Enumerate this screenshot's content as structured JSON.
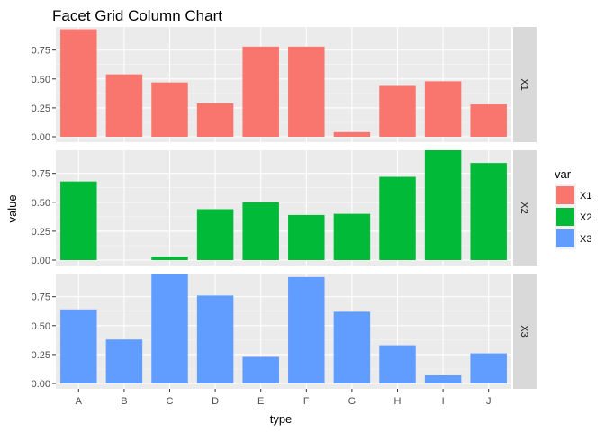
{
  "chart_data": {
    "type": "bar",
    "title": "Facet Grid Column Chart",
    "xlabel": "type",
    "ylabel": "value",
    "categories": [
      "A",
      "B",
      "C",
      "D",
      "E",
      "F",
      "G",
      "H",
      "I",
      "J"
    ],
    "ylim": [
      0,
      0.95
    ],
    "yticks": [
      0.0,
      0.25,
      0.5,
      0.75
    ],
    "ytick_labels": [
      "0.00",
      "0.25",
      "0.50",
      "0.75"
    ],
    "grid": true,
    "legend": {
      "title": "var",
      "placement": "right"
    },
    "facets": [
      {
        "label": "X1",
        "color": "#F8766D",
        "values": [
          0.93,
          0.54,
          0.47,
          0.29,
          0.78,
          0.78,
          0.04,
          0.44,
          0.48,
          0.28
        ]
      },
      {
        "label": "X2",
        "color": "#00BA38",
        "values": [
          0.68,
          0.0,
          0.03,
          0.44,
          0.5,
          0.39,
          0.4,
          0.72,
          0.95,
          0.84
        ]
      },
      {
        "label": "X3",
        "color": "#619CFF",
        "values": [
          0.64,
          0.38,
          0.95,
          0.76,
          0.23,
          0.92,
          0.62,
          0.33,
          0.07,
          0.26
        ]
      }
    ]
  }
}
